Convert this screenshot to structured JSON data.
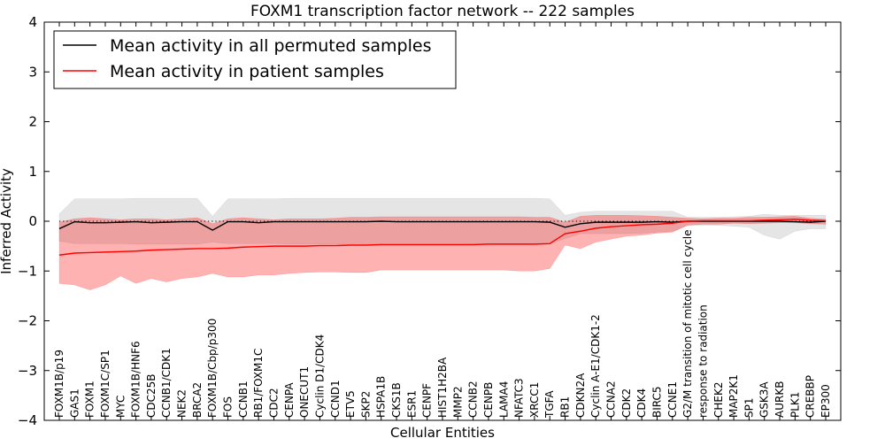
{
  "chart_data": {
    "type": "line",
    "title": "FOXM1 transcription factor network -- 222 samples",
    "xlabel": "Cellular Entities",
    "ylabel": "Inferred Activity",
    "ylim": [
      -4,
      4
    ],
    "yticks": [
      4,
      3,
      2,
      1,
      0,
      -1,
      -2,
      -3,
      -4
    ],
    "ytick_labels": [
      "4",
      "3",
      "2",
      "1",
      "0",
      "−1",
      "−2",
      "−3",
      "−4"
    ],
    "legend_position": "top-left",
    "reference_line": 0,
    "categories": [
      "FOXM1B/p19",
      "GAS1",
      "FOXM1",
      "FOXM1C/SP1",
      "MYC",
      "FOXM1B/HNF6",
      "CDC25B",
      "CCNB1/CDK1",
      "NEK2",
      "BRCA2",
      "FOXM1B/Cbp/p300",
      "FOS",
      "CCNB1",
      "RB1/FOXM1C",
      "CDC2",
      "CENPA",
      "ONECUT1",
      "Cyclin D1/CDK4",
      "CCND1",
      "ETV5",
      "SKP2",
      "HSPA1B",
      "CKS1B",
      "ESR1",
      "CENPF",
      "HIST1H2BA",
      "MMP2",
      "CCNB2",
      "CENPB",
      "LAMA4",
      "NFATC3",
      "XRCC1",
      "TGFA",
      "RB1",
      "CDKN2A",
      "Cyclin A-E1/CDK1-2",
      "CCNA2",
      "CDK2",
      "CDK4",
      "BIRC5",
      "CCNE1",
      "G2/M transition of mitotic cell cycle",
      "response to radiation",
      "CHEK2",
      "MAP2K1",
      "SP1",
      "GSK3A",
      "AURKB",
      "PLK1",
      "CREBBP",
      "EP300"
    ],
    "series": [
      {
        "name": "Mean activity in all permuted samples",
        "color": "#000000",
        "values": [
          -0.15,
          -0.01,
          -0.03,
          -0.03,
          -0.02,
          -0.01,
          -0.03,
          -0.02,
          -0.01,
          -0.01,
          -0.18,
          -0.01,
          -0.01,
          -0.03,
          -0.01,
          -0.01,
          -0.01,
          -0.01,
          -0.01,
          -0.01,
          -0.01,
          0.0,
          -0.01,
          -0.01,
          -0.01,
          -0.01,
          -0.01,
          -0.01,
          -0.01,
          -0.01,
          -0.01,
          -0.01,
          -0.02,
          -0.12,
          -0.05,
          -0.02,
          -0.02,
          -0.02,
          -0.02,
          -0.01,
          -0.02,
          0.0,
          0.0,
          0.0,
          0.0,
          0.0,
          0.0,
          0.0,
          -0.01,
          -0.02,
          0.0
        ],
        "band_upper": [
          0.15,
          0.45,
          0.45,
          0.45,
          0.45,
          0.46,
          0.46,
          0.46,
          0.46,
          0.46,
          0.1,
          0.45,
          0.45,
          0.45,
          0.45,
          0.46,
          0.46,
          0.46,
          0.46,
          0.46,
          0.46,
          0.46,
          0.46,
          0.46,
          0.46,
          0.46,
          0.46,
          0.46,
          0.46,
          0.46,
          0.46,
          0.46,
          0.45,
          0.12,
          0.18,
          0.2,
          0.2,
          0.2,
          0.2,
          0.2,
          0.2,
          0.08,
          0.08,
          0.08,
          0.09,
          0.1,
          0.14,
          0.12,
          0.12,
          0.12,
          0.12
        ],
        "band_lower": [
          -0.4,
          -0.45,
          -0.45,
          -0.45,
          -0.45,
          -0.46,
          -0.46,
          -0.46,
          -0.46,
          -0.46,
          -0.42,
          -0.45,
          -0.45,
          -0.45,
          -0.45,
          -0.46,
          -0.46,
          -0.46,
          -0.46,
          -0.46,
          -0.46,
          -0.46,
          -0.46,
          -0.46,
          -0.46,
          -0.46,
          -0.46,
          -0.46,
          -0.46,
          -0.46,
          -0.46,
          -0.46,
          -0.45,
          -0.35,
          -0.25,
          -0.25,
          -0.25,
          -0.25,
          -0.24,
          -0.22,
          -0.2,
          -0.08,
          -0.08,
          -0.08,
          -0.1,
          -0.12,
          -0.28,
          -0.36,
          -0.2,
          -0.15,
          -0.15
        ]
      },
      {
        "name": "Mean activity in patient samples",
        "color": "#ff0000",
        "values": [
          -0.68,
          -0.64,
          -0.63,
          -0.62,
          -0.61,
          -0.6,
          -0.58,
          -0.57,
          -0.56,
          -0.55,
          -0.55,
          -0.54,
          -0.52,
          -0.51,
          -0.5,
          -0.5,
          -0.5,
          -0.49,
          -0.49,
          -0.48,
          -0.48,
          -0.47,
          -0.47,
          -0.47,
          -0.47,
          -0.47,
          -0.47,
          -0.47,
          -0.46,
          -0.46,
          -0.46,
          -0.46,
          -0.45,
          -0.25,
          -0.2,
          -0.14,
          -0.11,
          -0.09,
          -0.07,
          -0.06,
          -0.04,
          0.0,
          0.01,
          0.01,
          0.01,
          0.01,
          0.02,
          0.03,
          0.04,
          0.02,
          0.01
        ],
        "band_upper": [
          -0.02,
          0.05,
          0.07,
          0.05,
          0.03,
          0.05,
          0.05,
          0.03,
          0.05,
          0.07,
          -0.05,
          0.05,
          0.07,
          0.05,
          0.03,
          0.05,
          0.05,
          0.05,
          0.06,
          0.08,
          0.08,
          0.09,
          0.09,
          0.09,
          0.09,
          0.09,
          0.09,
          0.09,
          0.09,
          0.09,
          0.09,
          0.08,
          0.08,
          -0.02,
          0.1,
          0.12,
          0.12,
          0.12,
          0.11,
          0.1,
          0.08,
          0.06,
          0.05,
          0.06,
          0.06,
          0.08,
          0.08,
          0.09,
          0.1,
          0.06,
          0.04
        ],
        "band_lower": [
          -1.25,
          -1.28,
          -1.38,
          -1.28,
          -1.1,
          -1.25,
          -1.15,
          -1.22,
          -1.15,
          -1.12,
          -1.05,
          -1.12,
          -1.12,
          -1.08,
          -1.08,
          -1.05,
          -1.03,
          -1.02,
          -1.02,
          -1.03,
          -1.03,
          -0.98,
          -0.98,
          -0.98,
          -0.98,
          -0.98,
          -0.98,
          -0.98,
          -0.98,
          -0.98,
          -1.0,
          -1.0,
          -0.95,
          -0.48,
          -0.55,
          -0.42,
          -0.36,
          -0.3,
          -0.28,
          -0.24,
          -0.22,
          -0.08,
          -0.06,
          -0.06,
          -0.04,
          -0.05,
          -0.04,
          -0.03,
          -0.03,
          -0.05,
          -0.06
        ]
      }
    ]
  }
}
